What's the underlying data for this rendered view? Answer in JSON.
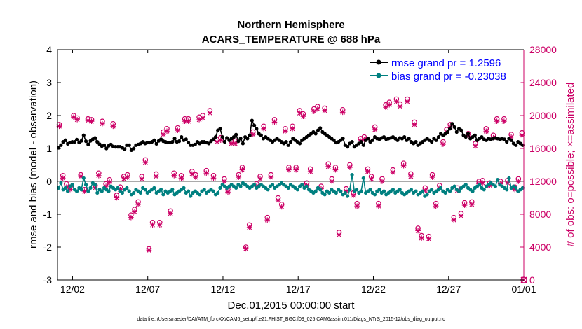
{
  "chart_data": {
    "type": "line",
    "title": "Northern Hemisphere",
    "subtitle": "ACARS_TEMPERATURE @ 688 hPa",
    "xlabel": "Dec.01,2015 00:00:00 start",
    "ylabel": "rmse and bias (model - observation)",
    "y2label": "# of obs: o=possible; ×=assimilated",
    "footnote": "data file: /Users/raeder/DAI/ATM_forcXX/CAM6_setup/f.e21.FHIST_BGC.f09_025.CAM6assim.011/Diags_NTrS_2015-12/obs_diag_output.nc",
    "xlim": [
      0,
      31
    ],
    "ylim": [
      -3,
      4
    ],
    "y2lim": [
      0,
      28000
    ],
    "xticks": [
      1,
      6,
      11,
      16,
      21,
      26,
      31
    ],
    "xtick_labels": [
      "12/02",
      "12/07",
      "12/12",
      "12/17",
      "12/22",
      "12/27",
      "01/01"
    ],
    "yticks": [
      "-3",
      "-2",
      "-1",
      "0",
      "1",
      "2",
      "3",
      "4"
    ],
    "y2ticks": [
      "0",
      "4000",
      "8000",
      "12000",
      "16000",
      "20000",
      "24000",
      "28000"
    ],
    "zero_line": 0,
    "legend": {
      "location": "top-right",
      "rmse_label": "rmse grand pr = 1.2596",
      "bias_label": "bias grand pr = -0.23038"
    },
    "colors": {
      "rmse": "#000000",
      "bias": "#008080",
      "obs": "#cc0066",
      "zero_line": "#aaaaaa"
    },
    "series": [
      {
        "name": "rmse",
        "values": [
          1.02,
          1.1,
          1.2,
          1.25,
          1.14,
          1.18,
          1.2,
          1.2,
          1.27,
          1.18,
          1.23,
          1.4,
          1.22,
          1.12,
          1.23,
          1.28,
          1.32,
          1.2,
          1.13,
          1.07,
          1.1,
          1.0,
          1.08,
          1.12,
          1.06,
          1.05,
          1.05,
          1.05,
          1.02,
          0.98,
          1.1,
          1.1,
          0.95,
          1.0,
          1.1,
          1.12,
          1.15,
          1.2,
          1.15,
          1.18,
          1.18,
          1.2,
          1.25,
          1.14,
          1.23,
          1.28,
          1.22,
          1.2,
          1.18,
          1.18,
          1.2,
          1.3,
          1.2,
          1.22,
          1.35,
          1.25,
          1.28,
          1.18,
          1.1,
          1.1,
          1.12,
          1.2,
          1.15,
          1.2,
          1.2,
          1.18,
          1.15,
          1.22,
          1.28,
          1.35,
          1.55,
          1.6,
          1.35,
          1.2,
          1.32,
          1.25,
          1.3,
          1.35,
          1.42,
          1.22,
          1.3,
          1.15,
          1.35,
          1.3,
          1.4,
          1.85,
          1.7,
          1.6,
          1.45,
          1.4,
          1.3,
          1.35,
          1.3,
          1.25,
          1.2,
          1.25,
          1.3,
          1.25,
          1.2,
          1.15,
          1.2,
          1.1,
          1.2,
          1.3,
          1.25,
          1.2,
          1.15,
          1.25,
          1.3,
          1.35,
          1.4,
          1.45,
          1.5,
          1.45,
          1.55,
          1.62,
          1.5,
          1.45,
          1.4,
          1.35,
          1.3,
          1.25,
          1.18,
          1.2,
          1.25,
          1.3,
          1.1,
          1.05,
          1.15,
          1.2,
          1.05,
          1.1,
          1.15,
          1.2,
          1.1,
          1.25,
          1.3,
          1.2,
          1.25,
          1.35,
          1.3,
          1.28,
          1.32,
          1.35,
          1.28,
          1.3,
          1.32,
          1.35,
          1.3,
          1.25,
          1.32,
          1.3,
          1.35,
          1.25,
          1.3,
          1.2,
          1.15,
          1.2,
          1.1,
          1.15,
          1.2,
          1.25,
          1.3,
          1.25,
          1.2,
          1.3,
          1.25,
          1.35,
          1.45,
          1.4,
          1.45,
          1.5,
          1.6,
          1.75,
          1.65,
          1.5,
          1.6,
          1.55,
          1.4,
          1.35,
          1.45,
          1.3,
          1.35,
          1.4,
          1.25,
          1.3,
          1.35,
          1.28,
          1.25,
          1.3,
          1.28,
          1.3,
          1.32,
          1.3,
          1.28,
          1.3,
          1.28,
          1.2,
          1.3,
          1.25,
          1.15,
          1.1,
          1.2,
          1.15,
          1.1
        ]
      },
      {
        "name": "bias",
        "values": [
          -0.2,
          -0.05,
          -0.25,
          -0.2,
          -0.3,
          -0.15,
          -0.1,
          -0.25,
          -0.3,
          -0.2,
          -0.25,
          0.1,
          -0.1,
          -0.3,
          -0.2,
          -0.05,
          -0.1,
          -0.35,
          -0.25,
          -0.3,
          -0.2,
          -0.25,
          -0.3,
          -0.15,
          -0.2,
          -0.25,
          -0.2,
          -0.3,
          -0.35,
          -0.25,
          -0.2,
          -0.3,
          -0.4,
          -0.35,
          -0.25,
          -0.3,
          -0.35,
          -0.2,
          -0.25,
          -0.35,
          -0.3,
          -0.25,
          -0.2,
          -0.35,
          -0.3,
          -0.25,
          -0.4,
          -0.3,
          -0.35,
          -0.3,
          -0.25,
          -0.4,
          -0.35,
          -0.3,
          -0.25,
          -0.2,
          -0.35,
          -0.3,
          -0.45,
          -0.35,
          -0.3,
          -0.35,
          -0.4,
          -0.3,
          -0.25,
          -0.35,
          -0.3,
          -0.25,
          -0.3,
          -0.4,
          -0.35,
          -0.2,
          -0.1,
          -0.15,
          -0.2,
          -0.15,
          -0.1,
          -0.15,
          -0.2,
          -0.1,
          -0.15,
          -0.05,
          -0.1,
          -0.15,
          -0.2,
          -0.15,
          -0.1,
          -0.2,
          -0.15,
          -0.1,
          -0.15,
          -0.2,
          -0.25,
          -0.15,
          -0.1,
          -0.2,
          -0.15,
          -0.1,
          -0.05,
          -0.1,
          -0.15,
          -0.2,
          -0.1,
          -0.15,
          -0.2,
          -0.25,
          -0.15,
          -0.1,
          -0.2,
          -0.15,
          -0.25,
          -0.3,
          -0.35,
          -0.3,
          -0.2,
          -0.25,
          -0.35,
          -0.4,
          -0.3,
          -0.35,
          -0.25,
          -0.3,
          -0.35,
          -0.25,
          -0.3,
          -0.4,
          -0.35,
          -0.45,
          -0.25,
          0.2,
          -0.3,
          -0.25,
          -0.35,
          -0.3,
          0.1,
          -0.35,
          -0.3,
          -0.25,
          -0.35,
          -0.4,
          -0.3,
          -0.25,
          -0.35,
          -0.3,
          -0.4,
          -0.35,
          -0.3,
          -0.25,
          -0.35,
          -0.3,
          -0.25,
          -0.35,
          -0.4,
          -0.35,
          -0.3,
          -0.25,
          -0.35,
          -0.3,
          -0.4,
          -0.35,
          -0.3,
          -0.45,
          -0.4,
          -0.3,
          -0.25,
          -0.35,
          -0.3,
          -0.25,
          -0.2,
          -0.3,
          -0.35,
          -0.25,
          -0.3,
          -0.2,
          -0.15,
          -0.25,
          -0.3,
          -0.2,
          -0.15,
          -0.1,
          -0.2,
          -0.25,
          -0.3,
          -0.2,
          -0.15,
          -0.1,
          -0.2,
          -0.25,
          -0.15,
          -0.1,
          -0.05,
          -0.1,
          -0.15,
          0.05,
          -0.1,
          -0.15,
          -0.2,
          -0.25,
          0.1,
          -0.2,
          -0.15,
          -0.2,
          -0.3,
          -0.25,
          -0.2
        ]
      },
      {
        "name": "obs_possible",
        "values": [
          18900,
          12700,
          11700,
          11300,
          20000,
          19700,
          12800,
          11000,
          19600,
          19500,
          11500,
          13000,
          19300,
          11700,
          12200,
          19000,
          10300,
          11300,
          12600,
          12800,
          7900,
          8600,
          9500,
          12600,
          14600,
          3800,
          7000,
          12900,
          7000,
          18000,
          18400,
          8400,
          13000,
          18500,
          12700,
          19600,
          19600,
          13200,
          12800,
          19800,
          20000,
          13300,
          20600,
          12700,
          17100,
          17300,
          12300,
          11000,
          16900,
          16900,
          12800,
          13700,
          4000,
          6700,
          18000,
          11700,
          12600,
          18700,
          7600,
          12800,
          19500,
          10000,
          9200,
          18400,
          13700,
          18700,
          13700,
          20600,
          20200,
          11800,
          13500,
          20800,
          21100,
          11400,
          20900,
          14100,
          12300,
          13700,
          5800,
          20700,
          11100,
          14000,
          10600,
          9300,
          17200,
          17400,
          13500,
          12600,
          18600,
          9300,
          12300,
          21300,
          21600,
          13400,
          22000,
          21400,
          14200,
          22000,
          12900,
          19200,
          6300,
          5400,
          11200,
          5300,
          12800,
          9300,
          11500,
          16800,
          18300,
          18900,
          7600,
          11200,
          8100,
          9400,
          17800,
          9500,
          16600,
          12000,
          12100,
          18400,
          11800,
          17600,
          19600,
          12000,
          19600,
          12100,
          17700,
          11300,
          12300,
          17900
        ]
      },
      {
        "name": "obs_assimilated",
        "values": [
          18700,
          12400,
          11300,
          11000,
          19800,
          19500,
          12600,
          10800,
          19400,
          19300,
          11200,
          12700,
          19000,
          11400,
          11900,
          18700,
          10000,
          11000,
          12300,
          12500,
          7600,
          8300,
          9200,
          12300,
          14300,
          3600,
          6700,
          12600,
          6700,
          17700,
          18100,
          8100,
          12700,
          18200,
          12400,
          19300,
          19300,
          12900,
          12500,
          19500,
          19700,
          13000,
          20300,
          12400,
          16800,
          17000,
          12000,
          10700,
          16600,
          16600,
          12500,
          13400,
          3800,
          6400,
          17700,
          11400,
          12300,
          18400,
          7300,
          12500,
          19200,
          9700,
          8900,
          18100,
          13400,
          18400,
          13400,
          20300,
          19900,
          11500,
          13200,
          20500,
          20800,
          11100,
          20600,
          13800,
          12000,
          13400,
          5500,
          20400,
          10800,
          13700,
          10300,
          9000,
          16900,
          17100,
          13200,
          12300,
          18300,
          9000,
          12000,
          21000,
          21300,
          13100,
          21700,
          21100,
          13900,
          21700,
          12600,
          18900,
          6000,
          5100,
          10900,
          5000,
          12500,
          9000,
          11200,
          16500,
          18000,
          18600,
          7300,
          10900,
          7800,
          9100,
          17500,
          9200,
          16300,
          11700,
          11800,
          18100,
          11500,
          17300,
          19300,
          11700,
          19300,
          11800,
          17400,
          11000,
          12000,
          17600
        ]
      }
    ]
  }
}
